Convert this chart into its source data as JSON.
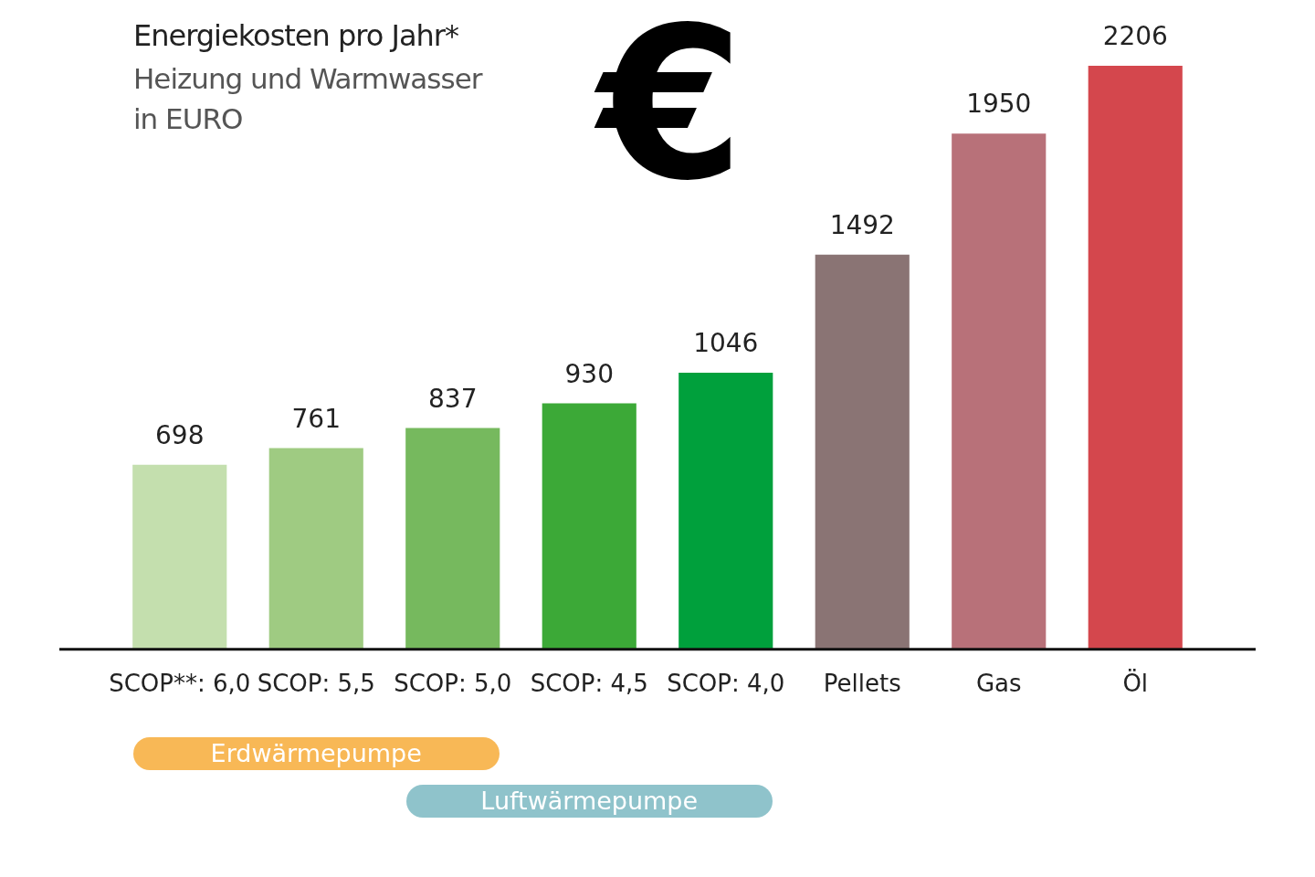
{
  "chart_data": {
    "type": "bar",
    "title": "Energiekosten pro Jahr*",
    "subtitle": "Heizung und Warmwasser in EURO",
    "categories": [
      "SCOP**: 6,0",
      "SCOP: 5,5",
      "SCOP: 5,0",
      "SCOP: 4,5",
      "SCOP: 4,0",
      "Pellets",
      "Gas",
      "Öl"
    ],
    "values": [
      698,
      761,
      837,
      930,
      1046,
      1492,
      1950,
      2206
    ],
    "colors": [
      "#c4dfae",
      "#9fcb82",
      "#76b95e",
      "#3ca937",
      "#00a03c",
      "#8a7474",
      "#b87179",
      "#d4474d"
    ],
    "data_labels": true,
    "grid": false,
    "legend": false,
    "tick_labels": "x",
    "annotations": [
      "€",
      "Erdwärmepumpe",
      "Luftwärmepumpe"
    ]
  }
}
